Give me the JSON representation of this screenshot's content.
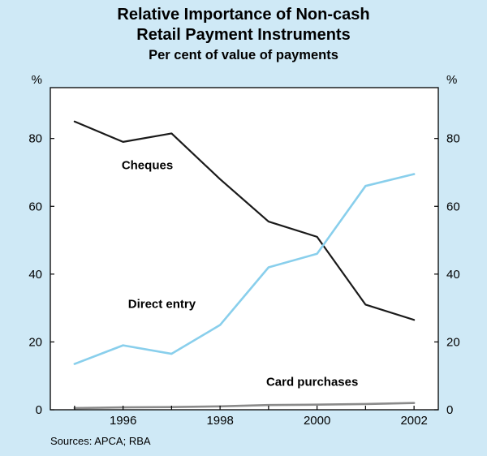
{
  "header": {
    "title_line1": "Relative Importance of Non-cash",
    "title_line2": "Retail Payment Instruments",
    "subtitle": "Per cent of value of payments"
  },
  "footer": {
    "source": "Sources: APCA; RBA"
  },
  "colors": {
    "background": "#cfe9f6",
    "plot_background": "#ffffff",
    "axis": "#000000"
  },
  "chart_data": {
    "type": "line",
    "title": "Relative Importance of Non-cash Retail Payment Instruments",
    "subtitle": "Per cent of value of payments",
    "unit": "%",
    "x": [
      1995,
      1996,
      1997,
      1998,
      1999,
      2000,
      2001,
      2002
    ],
    "series": [
      {
        "name": "Cheques",
        "color": "#1a1a1a",
        "stroke_width": 2.2,
        "values": [
          85,
          79,
          81.5,
          68,
          55.5,
          51,
          31,
          26.5
        ],
        "label_pos": {
          "x": 1996.5,
          "y": 71
        }
      },
      {
        "name": "Direct entry",
        "color": "#89cfec",
        "stroke_width": 2.6,
        "values": [
          13.5,
          19,
          16.5,
          25,
          42,
          46,
          66,
          69.5
        ],
        "label_pos": {
          "x": 1996.8,
          "y": 30
        }
      },
      {
        "name": "Card purchases",
        "color": "#8a8a8a",
        "stroke_width": 2.6,
        "values": [
          0.5,
          0.7,
          0.8,
          1,
          1.4,
          1.5,
          1.7,
          2
        ],
        "label_pos": {
          "x": 1999.9,
          "y": 7
        }
      }
    ],
    "xticks": [
      1996,
      1998,
      2000,
      2002
    ],
    "yticks": [
      0,
      20,
      40,
      60,
      80
    ],
    "xlim": [
      1994.5,
      2002.5
    ],
    "ylim": [
      0,
      95
    ],
    "grid": false,
    "legend": "inline-labels",
    "source": "Sources: APCA; RBA"
  }
}
